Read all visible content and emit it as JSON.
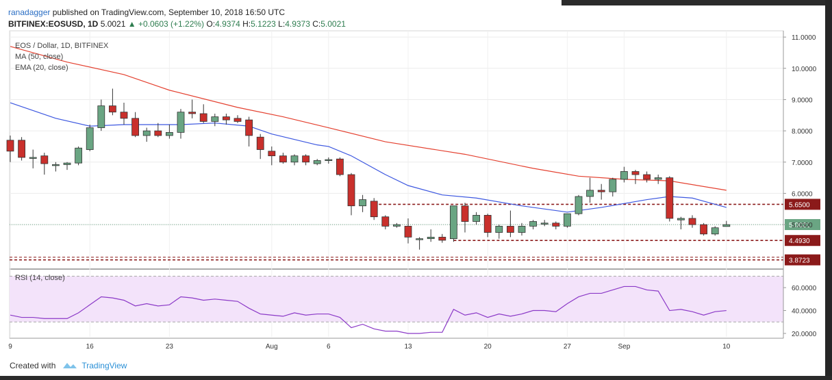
{
  "header": {
    "author": "ranadagger",
    "published": "published on TradingView.com, September 10, 2018 16:50 UTC",
    "symbol": "BITFINEX:EOSUSD, 1D",
    "last": "5.0021",
    "change": "+0.0603 (+1.22%)",
    "ohlc_o": "O:",
    "o_val": "4.9374",
    "ohlc_h": "H:",
    "h_val": "5.1223",
    "ohlc_l": "L:",
    "l_val": "4.9373",
    "ohlc_c": "C:",
    "c_val": "5.0021"
  },
  "legend": {
    "title": "EOS / Dollar, 1D, BITFINEX",
    "ma": "MA (50, close)",
    "ema": "EMA (20, close)",
    "rsi": "RSI (14, close)"
  },
  "footer": {
    "created": "Created with",
    "brand": "TradingView"
  },
  "colors": {
    "up": "#6aa583",
    "down": "#c9302c",
    "ema": "#e4402f",
    "ma": "#3c57e0",
    "rsi": "#8b39c7",
    "level": "#8b1a1a",
    "last": "#6aa583"
  },
  "chart_data": {
    "type": "candlestick",
    "title": "EOS / Dollar, 1D, BITFINEX",
    "price_axis": [
      "11.0000",
      "10.0000",
      "9.0000",
      "8.0000",
      "7.0000",
      "6.0000",
      "5.0000"
    ],
    "price_ylim": [
      3.6,
      11.2
    ],
    "x_tick_labels": [
      {
        "label": "9",
        "i": 0
      },
      {
        "label": "16",
        "i": 7
      },
      {
        "label": "23",
        "i": 14
      },
      {
        "label": "Aug",
        "i": 23
      },
      {
        "label": "6",
        "i": 28
      },
      {
        "label": "13",
        "i": 35
      },
      {
        "label": "20",
        "i": 42
      },
      {
        "label": "27",
        "i": 49
      },
      {
        "label": "Sep",
        "i": 54
      },
      {
        "label": "10",
        "i": 63
      }
    ],
    "candles": [
      {
        "o": 7.7,
        "h": 7.85,
        "l": 7.0,
        "c": 7.35
      },
      {
        "o": 7.7,
        "h": 7.8,
        "l": 7.05,
        "c": 7.15
      },
      {
        "o": 7.15,
        "h": 7.4,
        "l": 6.8,
        "c": 7.15
      },
      {
        "o": 7.2,
        "h": 7.3,
        "l": 6.6,
        "c": 6.95
      },
      {
        "o": 6.9,
        "h": 7.0,
        "l": 6.7,
        "c": 6.92
      },
      {
        "o": 6.92,
        "h": 7.0,
        "l": 6.75,
        "c": 6.97
      },
      {
        "o": 6.97,
        "h": 7.5,
        "l": 6.9,
        "c": 7.45
      },
      {
        "o": 7.4,
        "h": 8.2,
        "l": 7.35,
        "c": 8.1
      },
      {
        "o": 8.1,
        "h": 9.0,
        "l": 8.0,
        "c": 8.8
      },
      {
        "o": 8.8,
        "h": 9.35,
        "l": 8.5,
        "c": 8.6
      },
      {
        "o": 8.6,
        "h": 8.9,
        "l": 8.2,
        "c": 8.4
      },
      {
        "o": 8.4,
        "h": 8.6,
        "l": 7.8,
        "c": 7.85
      },
      {
        "o": 7.85,
        "h": 8.1,
        "l": 7.65,
        "c": 8.0
      },
      {
        "o": 8.0,
        "h": 8.25,
        "l": 7.8,
        "c": 7.85
      },
      {
        "o": 7.85,
        "h": 8.2,
        "l": 7.75,
        "c": 7.95
      },
      {
        "o": 7.95,
        "h": 8.7,
        "l": 7.75,
        "c": 8.6
      },
      {
        "o": 8.6,
        "h": 9.0,
        "l": 8.4,
        "c": 8.55
      },
      {
        "o": 8.55,
        "h": 8.85,
        "l": 8.25,
        "c": 8.3
      },
      {
        "o": 8.3,
        "h": 8.55,
        "l": 8.15,
        "c": 8.45
      },
      {
        "o": 8.45,
        "h": 8.55,
        "l": 8.2,
        "c": 8.35
      },
      {
        "o": 8.4,
        "h": 8.5,
        "l": 8.25,
        "c": 8.3
      },
      {
        "o": 8.35,
        "h": 8.45,
        "l": 7.5,
        "c": 7.85
      },
      {
        "o": 7.8,
        "h": 7.9,
        "l": 7.1,
        "c": 7.4
      },
      {
        "o": 7.35,
        "h": 7.5,
        "l": 6.9,
        "c": 7.2
      },
      {
        "o": 7.2,
        "h": 7.3,
        "l": 6.95,
        "c": 7.0
      },
      {
        "o": 7.0,
        "h": 7.25,
        "l": 6.9,
        "c": 7.2
      },
      {
        "o": 7.2,
        "h": 7.25,
        "l": 6.9,
        "c": 7.0
      },
      {
        "o": 6.95,
        "h": 7.1,
        "l": 6.9,
        "c": 7.05
      },
      {
        "o": 7.05,
        "h": 7.15,
        "l": 6.95,
        "c": 7.08
      },
      {
        "o": 7.1,
        "h": 7.15,
        "l": 6.55,
        "c": 6.6
      },
      {
        "o": 6.6,
        "h": 6.65,
        "l": 5.3,
        "c": 5.6
      },
      {
        "o": 5.6,
        "h": 5.95,
        "l": 5.4,
        "c": 5.8
      },
      {
        "o": 5.75,
        "h": 5.85,
        "l": 5.15,
        "c": 5.25
      },
      {
        "o": 5.25,
        "h": 5.3,
        "l": 4.85,
        "c": 4.95
      },
      {
        "o": 4.95,
        "h": 5.05,
        "l": 4.9,
        "c": 5.0
      },
      {
        "o": 4.95,
        "h": 5.2,
        "l": 4.4,
        "c": 4.6
      },
      {
        "o": 4.55,
        "h": 4.6,
        "l": 4.2,
        "c": 4.55
      },
      {
        "o": 4.55,
        "h": 4.85,
        "l": 4.45,
        "c": 4.6
      },
      {
        "o": 4.6,
        "h": 4.7,
        "l": 4.42,
        "c": 4.5
      },
      {
        "o": 4.55,
        "h": 5.6,
        "l": 4.45,
        "c": 5.6
      },
      {
        "o": 5.6,
        "h": 5.7,
        "l": 4.75,
        "c": 5.1
      },
      {
        "o": 5.1,
        "h": 5.4,
        "l": 5.0,
        "c": 5.3
      },
      {
        "o": 5.3,
        "h": 5.35,
        "l": 4.6,
        "c": 4.75
      },
      {
        "o": 4.75,
        "h": 5.0,
        "l": 4.55,
        "c": 4.95
      },
      {
        "o": 4.95,
        "h": 5.45,
        "l": 4.6,
        "c": 4.75
      },
      {
        "o": 4.75,
        "h": 5.05,
        "l": 4.65,
        "c": 4.95
      },
      {
        "o": 4.95,
        "h": 5.15,
        "l": 4.85,
        "c": 5.1
      },
      {
        "o": 5.05,
        "h": 5.15,
        "l": 4.95,
        "c": 5.05
      },
      {
        "o": 5.05,
        "h": 5.1,
        "l": 4.85,
        "c": 4.95
      },
      {
        "o": 4.95,
        "h": 5.35,
        "l": 4.9,
        "c": 5.35
      },
      {
        "o": 5.35,
        "h": 5.95,
        "l": 5.3,
        "c": 5.9
      },
      {
        "o": 5.9,
        "h": 6.5,
        "l": 5.7,
        "c": 6.1
      },
      {
        "o": 6.1,
        "h": 6.3,
        "l": 5.8,
        "c": 6.05
      },
      {
        "o": 6.05,
        "h": 6.5,
        "l": 5.9,
        "c": 6.45
      },
      {
        "o": 6.45,
        "h": 6.85,
        "l": 6.35,
        "c": 6.7
      },
      {
        "o": 6.7,
        "h": 6.75,
        "l": 6.3,
        "c": 6.6
      },
      {
        "o": 6.6,
        "h": 6.7,
        "l": 6.35,
        "c": 6.45
      },
      {
        "o": 6.45,
        "h": 6.6,
        "l": 6.3,
        "c": 6.5
      },
      {
        "o": 6.5,
        "h": 6.55,
        "l": 5.1,
        "c": 5.2
      },
      {
        "o": 5.15,
        "h": 5.25,
        "l": 4.85,
        "c": 5.2
      },
      {
        "o": 5.2,
        "h": 5.3,
        "l": 4.9,
        "c": 5.0
      },
      {
        "o": 5.0,
        "h": 5.05,
        "l": 4.65,
        "c": 4.7
      },
      {
        "o": 4.7,
        "h": 4.95,
        "l": 4.65,
        "c": 4.9
      },
      {
        "o": 4.94,
        "h": 5.12,
        "l": 4.94,
        "c": 5.0
      }
    ],
    "ema20": [
      [
        0,
        8.9
      ],
      [
        4,
        8.4
      ],
      [
        7,
        8.15
      ],
      [
        10,
        8.2
      ],
      [
        15,
        8.2
      ],
      [
        18,
        8.25
      ],
      [
        21,
        8.15
      ],
      [
        23,
        7.9
      ],
      [
        27,
        7.55
      ],
      [
        28,
        7.5
      ],
      [
        30,
        7.2
      ],
      [
        33,
        6.6
      ],
      [
        35,
        6.25
      ],
      [
        38,
        5.95
      ],
      [
        41,
        5.85
      ],
      [
        45,
        5.6
      ],
      [
        49,
        5.4
      ],
      [
        52,
        5.55
      ],
      [
        56,
        5.8
      ],
      [
        58,
        5.9
      ],
      [
        60,
        5.85
      ],
      [
        63,
        5.55
      ]
    ],
    "ma50": [
      [
        0,
        10.7
      ],
      [
        5,
        10.2
      ],
      [
        10,
        9.8
      ],
      [
        14,
        9.3
      ],
      [
        20,
        8.75
      ],
      [
        24,
        8.45
      ],
      [
        28,
        8.1
      ],
      [
        33,
        7.65
      ],
      [
        40,
        7.25
      ],
      [
        46,
        6.8
      ],
      [
        50,
        6.55
      ],
      [
        54,
        6.45
      ],
      [
        58,
        6.4
      ],
      [
        63,
        6.1
      ]
    ],
    "levels": [
      {
        "label": "5.6500",
        "value": 5.65
      },
      {
        "label": "4.4930",
        "value": 4.493
      },
      {
        "label": "3.8723",
        "value": 3.8723
      }
    ],
    "last_price_label": "5.0021",
    "last_price": 5.0021,
    "rsi": {
      "label": "RSI (14, close)",
      "axis": [
        "60.0000",
        "40.0000",
        "20.0000"
      ],
      "ylim": [
        17,
        75
      ],
      "band": [
        30,
        70
      ],
      "values": [
        [
          0,
          36
        ],
        [
          1,
          34
        ],
        [
          2,
          34
        ],
        [
          3,
          33
        ],
        [
          4,
          33
        ],
        [
          5,
          33
        ],
        [
          6,
          38
        ],
        [
          7,
          45
        ],
        [
          8,
          52
        ],
        [
          9,
          51
        ],
        [
          10,
          49
        ],
        [
          11,
          44
        ],
        [
          12,
          46
        ],
        [
          13,
          44
        ],
        [
          14,
          45
        ],
        [
          15,
          52
        ],
        [
          16,
          51
        ],
        [
          17,
          49
        ],
        [
          18,
          50
        ],
        [
          19,
          49
        ],
        [
          20,
          48
        ],
        [
          21,
          42
        ],
        [
          22,
          37
        ],
        [
          23,
          36
        ],
        [
          24,
          35
        ],
        [
          25,
          38
        ],
        [
          26,
          36
        ],
        [
          27,
          37
        ],
        [
          28,
          37
        ],
        [
          29,
          34
        ],
        [
          30,
          25
        ],
        [
          31,
          28
        ],
        [
          32,
          24
        ],
        [
          33,
          22
        ],
        [
          34,
          22
        ],
        [
          35,
          20
        ],
        [
          36,
          20
        ],
        [
          37,
          21
        ],
        [
          38,
          21
        ],
        [
          39,
          41
        ],
        [
          40,
          36
        ],
        [
          41,
          38
        ],
        [
          42,
          34
        ],
        [
          43,
          37
        ],
        [
          44,
          35
        ],
        [
          45,
          37
        ],
        [
          46,
          40
        ],
        [
          47,
          40
        ],
        [
          48,
          39
        ],
        [
          49,
          46
        ],
        [
          50,
          52
        ],
        [
          51,
          55
        ],
        [
          52,
          55
        ],
        [
          53,
          58
        ],
        [
          54,
          61
        ],
        [
          55,
          61
        ],
        [
          56,
          58
        ],
        [
          57,
          57
        ],
        [
          58,
          40
        ],
        [
          59,
          41
        ],
        [
          60,
          39
        ],
        [
          61,
          36
        ],
        [
          62,
          39
        ],
        [
          63,
          40
        ]
      ]
    }
  }
}
